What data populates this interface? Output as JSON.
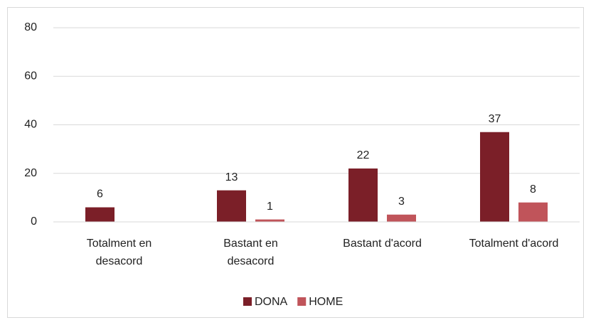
{
  "chart_data": {
    "type": "bar",
    "categories": [
      "Totalment en\ndesacord",
      "Bastant en\ndesacord",
      "Bastant d'acord",
      "Totalment d'acord"
    ],
    "series": [
      {
        "name": "DONA",
        "color": "#7b1f28",
        "values": [
          6,
          13,
          22,
          37
        ]
      },
      {
        "name": "HOME",
        "color": "#c0545a",
        "values": [
          null,
          1,
          3,
          8
        ]
      }
    ],
    "ylim": [
      0,
      80
    ],
    "yticks": [
      0,
      20,
      40,
      60,
      80
    ],
    "grid": true,
    "legend": "bottom"
  }
}
